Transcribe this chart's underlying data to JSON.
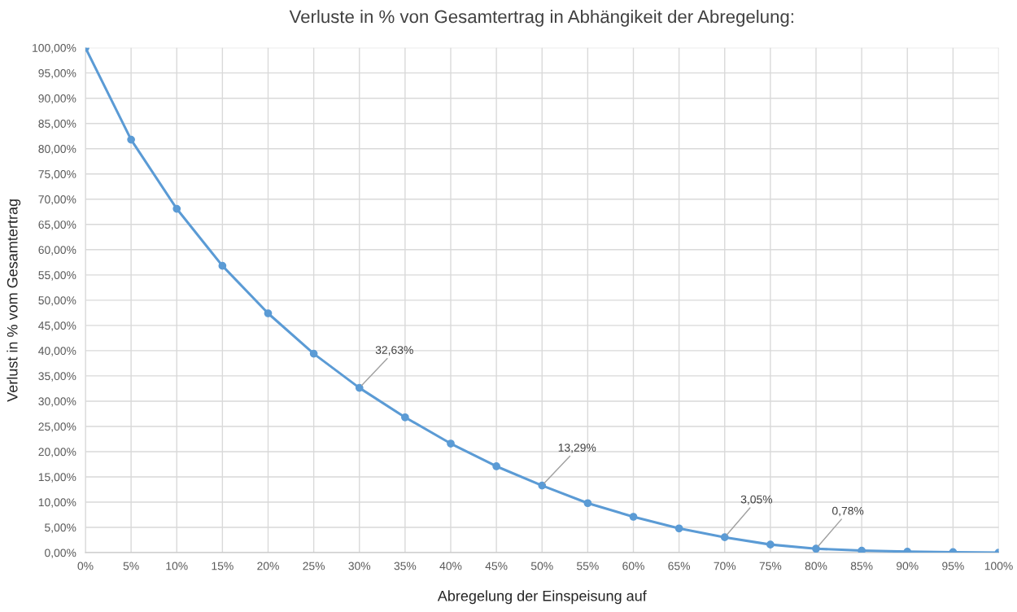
{
  "chart_data": {
    "type": "line",
    "title": "Verluste in % von Gesamtertrag in Abhängikeit der Abregelung:",
    "xlabel": "Abregelung der Einspeisung auf",
    "ylabel": "Verlust in % vom Gesamtertrag",
    "categories": [
      "0%",
      "5%",
      "10%",
      "15%",
      "20%",
      "25%",
      "30%",
      "35%",
      "40%",
      "45%",
      "50%",
      "55%",
      "60%",
      "65%",
      "70%",
      "75%",
      "80%",
      "85%",
      "90%",
      "95%",
      "100%"
    ],
    "series": [
      {
        "color": "#5b9bd5",
        "values": [
          100,
          81.8,
          68.1,
          56.8,
          47.4,
          39.4,
          32.63,
          26.8,
          21.6,
          17.1,
          13.29,
          9.8,
          7.1,
          4.8,
          3.05,
          1.6,
          0.78,
          0.4,
          0.2,
          0.1,
          0.0
        ],
        "value_labels": [
          null,
          null,
          null,
          null,
          null,
          null,
          "32,63%",
          null,
          null,
          null,
          "13,29%",
          null,
          null,
          null,
          "3,05%",
          null,
          "0,78%",
          null,
          null,
          null,
          null
        ]
      }
    ],
    "ylim": [
      0,
      100
    ],
    "yticks": [
      {
        "value": 0,
        "label": "0,00%"
      },
      {
        "value": 5,
        "label": "5,00%"
      },
      {
        "value": 10,
        "label": "10,00%"
      },
      {
        "value": 15,
        "label": "15,00%"
      },
      {
        "value": 20,
        "label": "20,00%"
      },
      {
        "value": 25,
        "label": "25,00%"
      },
      {
        "value": 30,
        "label": "30,00%"
      },
      {
        "value": 35,
        "label": "35,00%"
      },
      {
        "value": 40,
        "label": "40,00%"
      },
      {
        "value": 45,
        "label": "45,00%"
      },
      {
        "value": 50,
        "label": "50,00%"
      },
      {
        "value": 55,
        "label": "55,00%"
      },
      {
        "value": 60,
        "label": "60,00%"
      },
      {
        "value": 65,
        "label": "65,00%"
      },
      {
        "value": 70,
        "label": "70,00%"
      },
      {
        "value": 75,
        "label": "75,00%"
      },
      {
        "value": 80,
        "label": "80,00%"
      },
      {
        "value": 85,
        "label": "85,00%"
      },
      {
        "value": 90,
        "label": "90,00%"
      },
      {
        "value": 95,
        "label": "95,00%"
      },
      {
        "value": 100,
        "label": "100,00%"
      }
    ],
    "grid": true,
    "marker": "circle",
    "line_style": "solid"
  }
}
